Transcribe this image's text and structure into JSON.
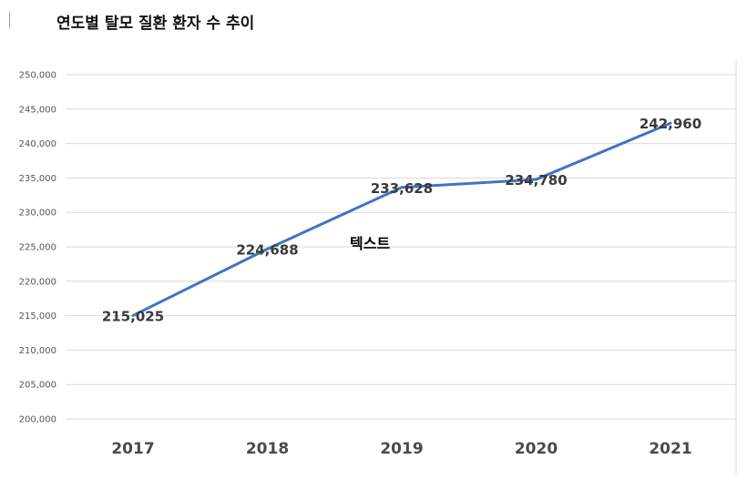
{
  "title": "연도별 탈모 질환 환자 수 추이",
  "chart_data": {
    "type": "line",
    "categories": [
      "2017",
      "2018",
      "2019",
      "2020",
      "2021"
    ],
    "series": [
      {
        "values": [
          215025,
          224688,
          233628,
          234780,
          242960
        ]
      }
    ],
    "data_labels": [
      "215,025",
      "224,688",
      "233,628",
      "234,780",
      "242,960"
    ],
    "ylim": [
      200000,
      250000
    ],
    "y_ticks": [
      200000,
      205000,
      210000,
      215000,
      220000,
      225000,
      230000,
      235000,
      240000,
      245000,
      250000
    ],
    "y_tick_labels": [
      "200,000",
      "205,000",
      "210,000",
      "215,000",
      "220,000",
      "225,000",
      "230,000",
      "235,000",
      "240,000",
      "245,000",
      "250,000"
    ],
    "annotation": "텍스트",
    "grid": true,
    "line_color": "#4472C4",
    "grid_color": "#d9d9d9"
  }
}
